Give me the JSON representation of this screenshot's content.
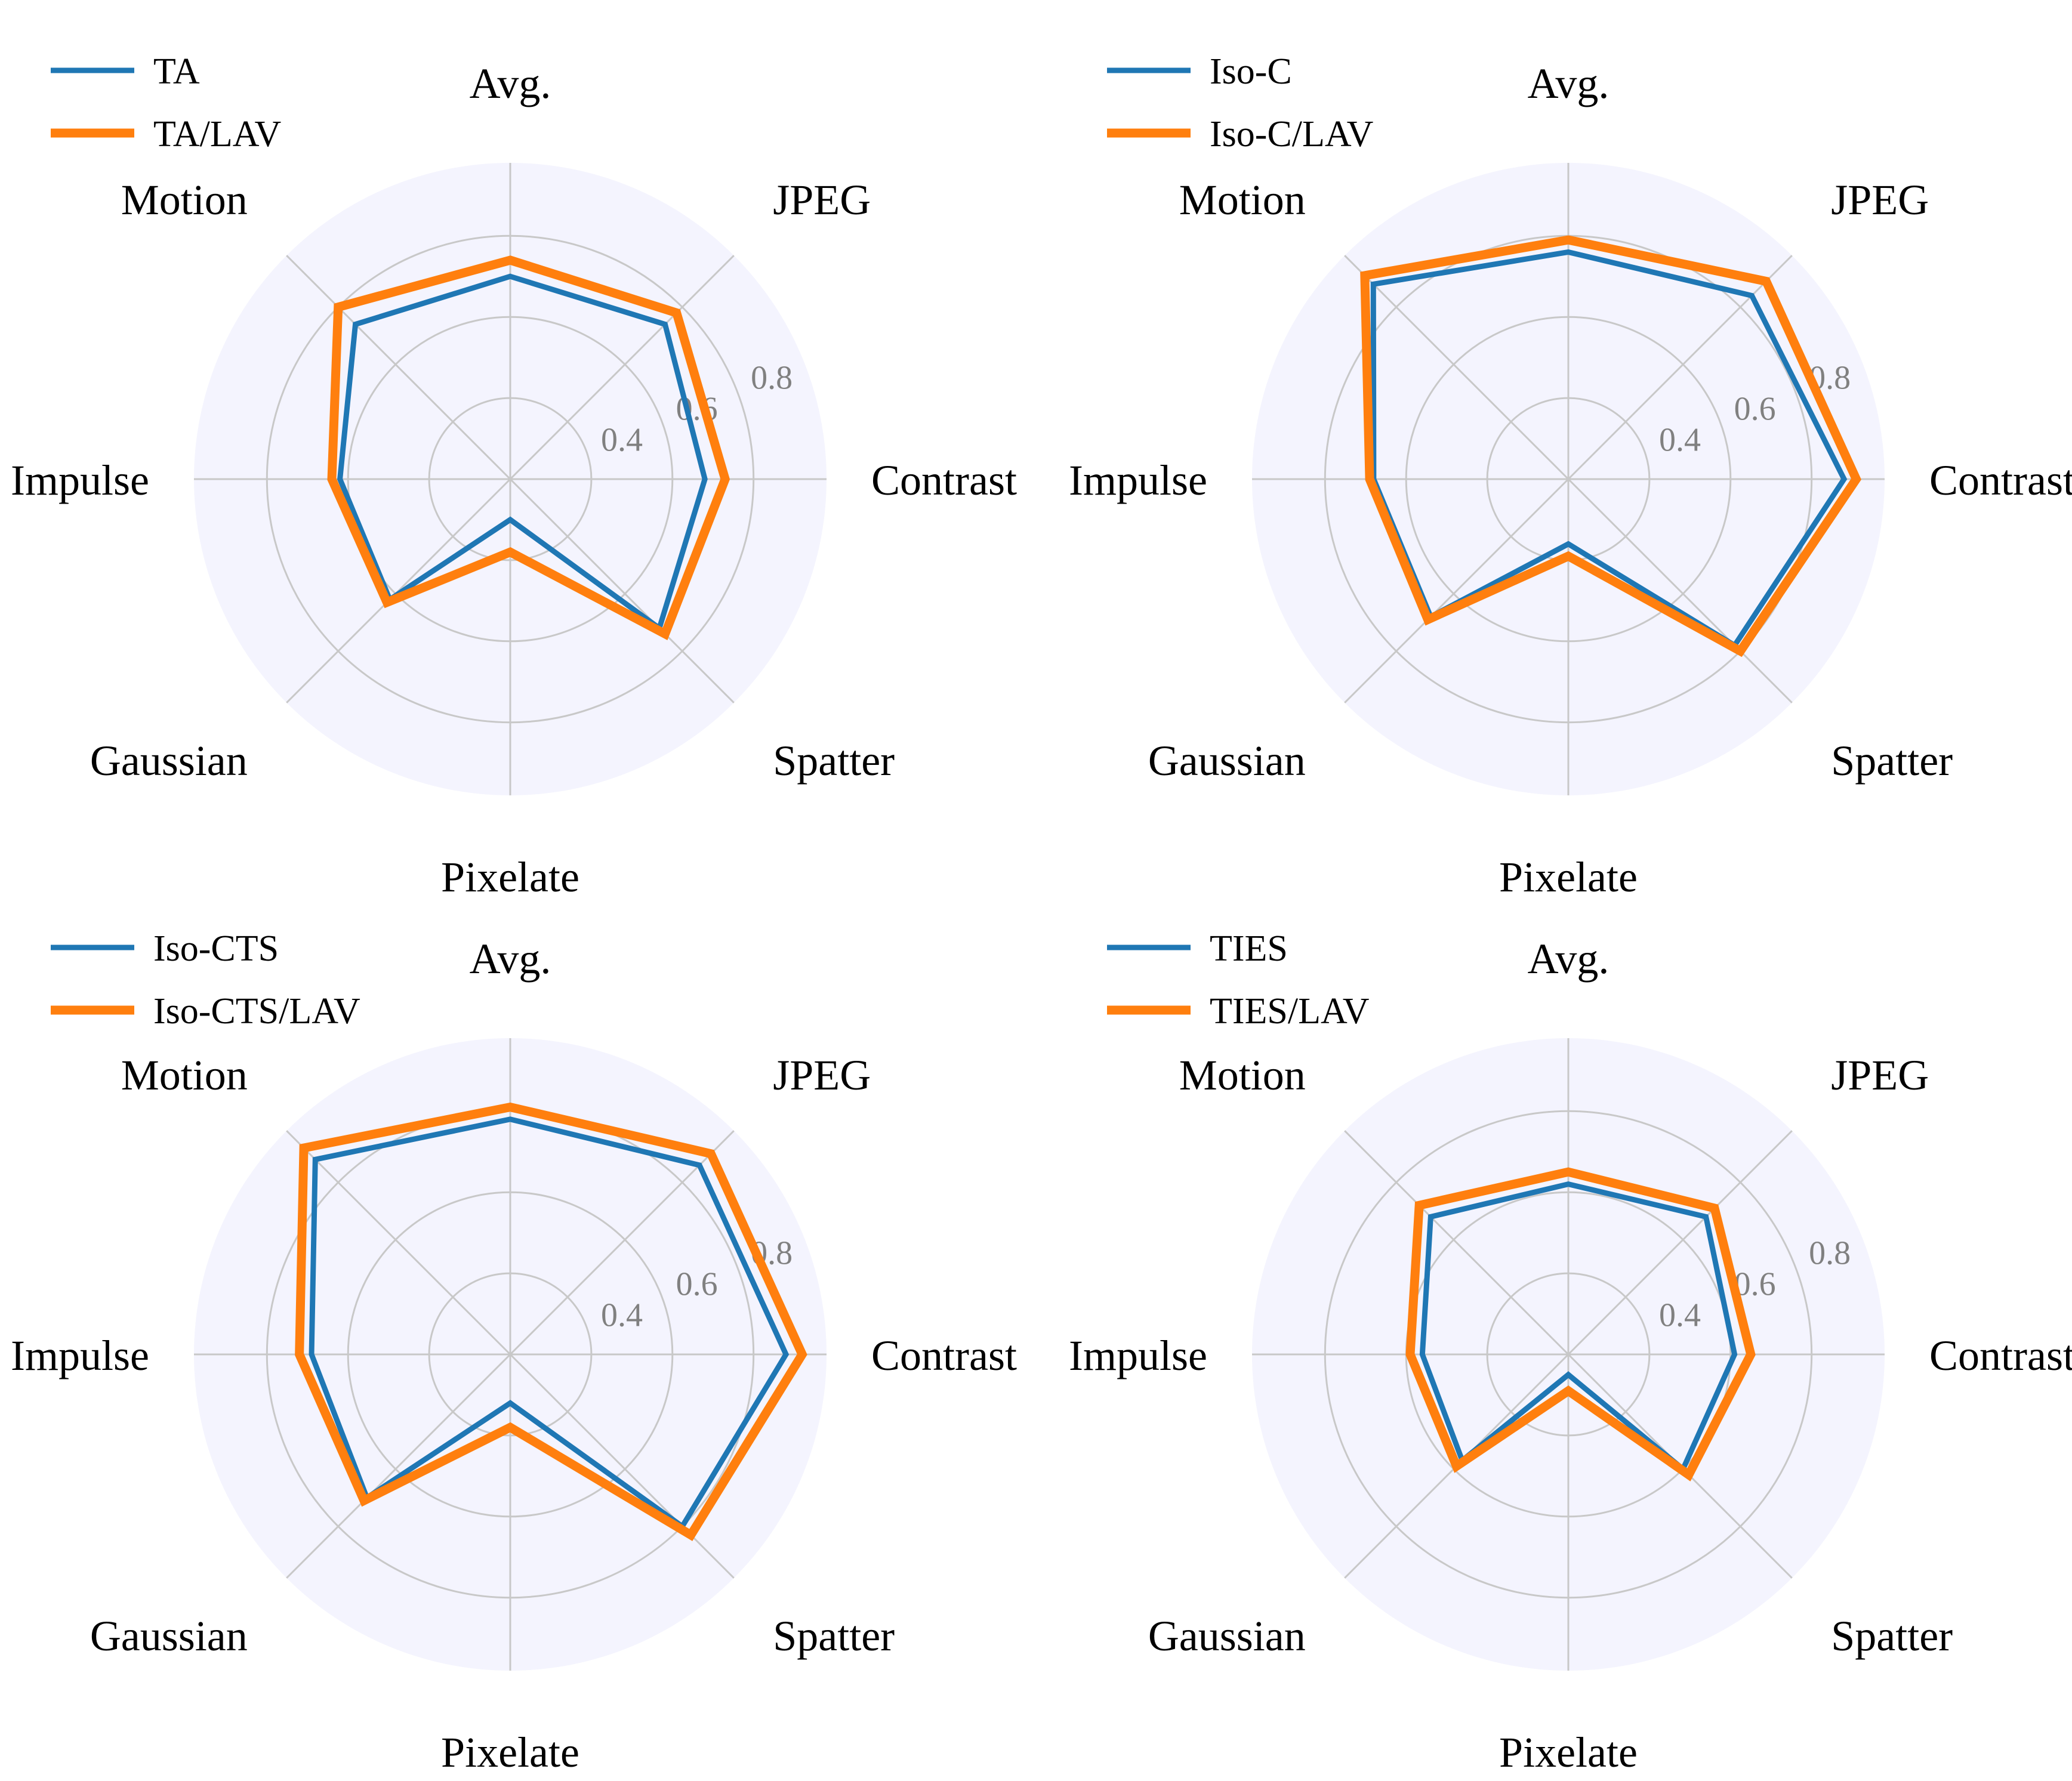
{
  "colors": {
    "base": "#1f77b4",
    "lav": "#ff7f0e",
    "disc": "#f4f4fe",
    "grid": "#c8c8c8",
    "tick": "#808080"
  },
  "chart_data": [
    {
      "type": "radar",
      "axes": [
        "Avg.",
        "JPEG",
        "Contrast",
        "Spatter",
        "Pixelate",
        "Gaussian",
        "Impulse",
        "Motion"
      ],
      "rlim": [
        0.2,
        0.98
      ],
      "rticks": [
        0.4,
        0.6,
        0.8
      ],
      "rtick_labels": [
        "0.4",
        "0.6",
        "0.8"
      ],
      "legend_position": "top-left",
      "series": [
        {
          "name": "TA",
          "values": [
            0.7,
            0.74,
            0.68,
            0.72,
            0.3,
            0.62,
            0.62,
            0.74
          ]
        },
        {
          "name": "TA/LAV",
          "values": [
            0.74,
            0.78,
            0.73,
            0.74,
            0.38,
            0.63,
            0.64,
            0.8
          ]
        }
      ]
    },
    {
      "type": "radar",
      "axes": [
        "Avg.",
        "JPEG",
        "Contrast",
        "Spatter",
        "Pixelate",
        "Gaussian",
        "Impulse",
        "Motion"
      ],
      "rlim": [
        0.2,
        0.98
      ],
      "rticks": [
        0.4,
        0.6,
        0.8
      ],
      "rtick_labels": [
        "0.4",
        "0.6",
        "0.8"
      ],
      "legend_position": "top-left",
      "series": [
        {
          "name": "Iso-C",
          "values": [
            0.76,
            0.84,
            0.88,
            0.78,
            0.36,
            0.68,
            0.68,
            0.88
          ]
        },
        {
          "name": "Iso-C/LAV",
          "values": [
            0.79,
            0.89,
            0.91,
            0.8,
            0.39,
            0.69,
            0.69,
            0.91
          ]
        }
      ]
    },
    {
      "type": "radar",
      "axes": [
        "Avg.",
        "JPEG",
        "Contrast",
        "Spatter",
        "Pixelate",
        "Gaussian",
        "Impulse",
        "Motion"
      ],
      "rlim": [
        0.2,
        0.98
      ],
      "rticks": [
        0.4,
        0.6,
        0.8
      ],
      "rtick_labels": [
        "0.4",
        "0.6",
        "0.8"
      ],
      "legend_position": "top-left",
      "series": [
        {
          "name": "Iso-CTS",
          "values": [
            0.78,
            0.86,
            0.88,
            0.8,
            0.32,
            0.7,
            0.69,
            0.88
          ]
        },
        {
          "name": "Iso-CTS/LAV",
          "values": [
            0.81,
            0.9,
            0.92,
            0.83,
            0.38,
            0.71,
            0.72,
            0.92
          ]
        }
      ]
    },
    {
      "type": "radar",
      "axes": [
        "Avg.",
        "JPEG",
        "Contrast",
        "Spatter",
        "Pixelate",
        "Gaussian",
        "Impulse",
        "Motion"
      ],
      "rlim": [
        0.2,
        0.98
      ],
      "rticks": [
        0.4,
        0.6,
        0.8
      ],
      "rtick_labels": [
        "0.4",
        "0.6",
        "0.8"
      ],
      "legend_position": "top-left",
      "series": [
        {
          "name": "TIES",
          "values": [
            0.62,
            0.68,
            0.61,
            0.6,
            0.25,
            0.57,
            0.56,
            0.68
          ]
        },
        {
          "name": "TIES/LAV",
          "values": [
            0.65,
            0.71,
            0.65,
            0.62,
            0.29,
            0.59,
            0.59,
            0.72
          ]
        }
      ]
    }
  ]
}
